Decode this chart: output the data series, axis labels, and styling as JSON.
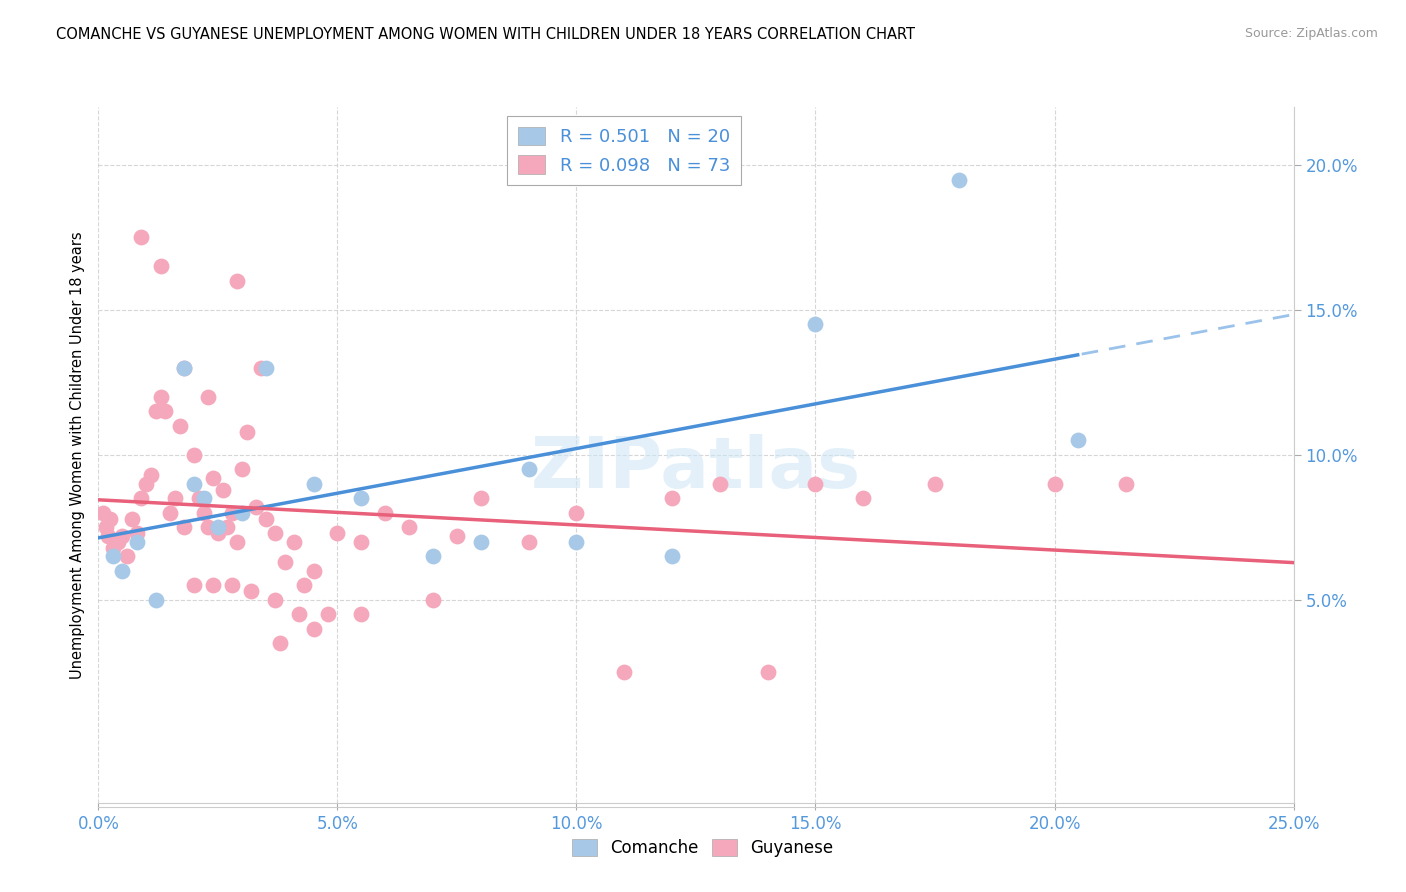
{
  "title": "COMANCHE VS GUYANESE UNEMPLOYMENT AMONG WOMEN WITH CHILDREN UNDER 18 YEARS CORRELATION CHART",
  "source": "Source: ZipAtlas.com",
  "ylabel": "Unemployment Among Women with Children Under 18 years",
  "xlabel_vals": [
    0.0,
    5.0,
    10.0,
    15.0,
    20.0,
    25.0
  ],
  "ylabel_vals": [
    5.0,
    10.0,
    15.0,
    20.0
  ],
  "xlim": [
    0.0,
    25.0
  ],
  "ylim": [
    -2.0,
    22.0
  ],
  "comanche_R": 0.501,
  "comanche_N": 20,
  "guyanese_R": 0.098,
  "guyanese_N": 73,
  "comanche_color": "#a8c8e8",
  "guyanese_color": "#f5a8bc",
  "comanche_line_color": "#4a90d9",
  "guyanese_line_color": "#e8607a",
  "watermark": "ZIPatlas",
  "comanche_x": [
    0.3,
    0.5,
    0.8,
    1.2,
    1.8,
    2.0,
    2.2,
    2.5,
    3.0,
    3.5,
    4.5,
    5.5,
    7.0,
    8.0,
    9.0,
    10.0,
    12.0,
    15.0,
    18.0,
    20.5
  ],
  "comanche_y": [
    6.5,
    6.0,
    7.0,
    5.0,
    13.0,
    9.0,
    8.5,
    7.5,
    8.0,
    13.0,
    9.0,
    8.5,
    6.5,
    7.0,
    9.5,
    7.0,
    6.5,
    14.5,
    19.5,
    10.5
  ],
  "guyanese_x": [
    0.1,
    0.15,
    0.2,
    0.25,
    0.3,
    0.4,
    0.5,
    0.6,
    0.7,
    0.8,
    0.9,
    1.0,
    1.1,
    1.2,
    1.3,
    1.4,
    1.5,
    1.6,
    1.7,
    1.8,
    2.0,
    2.1,
    2.2,
    2.3,
    2.4,
    2.5,
    2.6,
    2.7,
    2.8,
    2.9,
    3.0,
    3.1,
    3.3,
    3.5,
    3.7,
    3.9,
    4.1,
    4.3,
    4.5,
    5.0,
    5.5,
    6.0,
    6.5,
    7.0,
    7.5,
    8.0,
    9.0,
    10.0,
    11.0,
    12.0,
    13.0,
    14.0,
    15.0,
    16.0,
    17.5,
    20.0,
    21.5,
    0.9,
    1.3,
    1.8,
    2.3,
    2.9,
    3.4,
    3.8,
    4.2,
    4.8,
    5.5,
    2.0,
    2.4,
    2.8,
    3.2,
    3.7,
    4.5
  ],
  "guyanese_y": [
    8.0,
    7.5,
    7.2,
    7.8,
    6.8,
    7.0,
    7.2,
    6.5,
    7.8,
    7.3,
    8.5,
    9.0,
    9.3,
    11.5,
    12.0,
    11.5,
    8.0,
    8.5,
    11.0,
    7.5,
    10.0,
    8.5,
    8.0,
    7.5,
    9.2,
    7.3,
    8.8,
    7.5,
    8.0,
    7.0,
    9.5,
    10.8,
    8.2,
    7.8,
    7.3,
    6.3,
    7.0,
    5.5,
    6.0,
    7.3,
    7.0,
    8.0,
    7.5,
    5.0,
    7.2,
    8.5,
    7.0,
    8.0,
    2.5,
    8.5,
    9.0,
    2.5,
    9.0,
    8.5,
    9.0,
    9.0,
    9.0,
    17.5,
    16.5,
    13.0,
    12.0,
    16.0,
    13.0,
    3.5,
    4.5,
    4.5,
    4.5,
    5.5,
    5.5,
    5.5,
    5.3,
    5.0,
    4.0
  ]
}
